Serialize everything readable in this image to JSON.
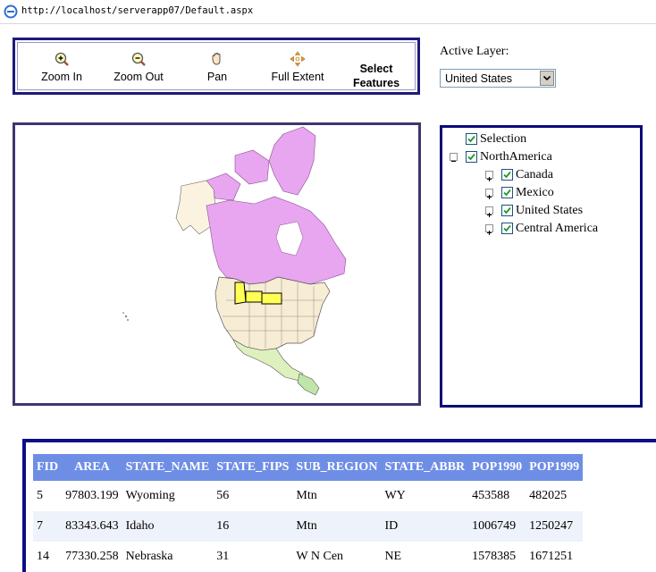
{
  "browser": {
    "url": "http://localhost/serverapp07/Default.aspx"
  },
  "toolbar": {
    "zoom_in": "Zoom In",
    "zoom_out": "Zoom Out",
    "pan": "Pan",
    "full_extent": "Full Extent",
    "select_line1": "Select",
    "select_line2": "Features"
  },
  "active_layer": {
    "label": "Active Layer:",
    "value": "United States"
  },
  "toc": {
    "items": [
      {
        "label": "Selection",
        "checked": true
      },
      {
        "label": "NorthAmerica",
        "checked": true,
        "expanded": true
      },
      {
        "label": "Canada",
        "checked": true
      },
      {
        "label": "Mexico",
        "checked": true
      },
      {
        "label": "United States",
        "checked": true
      },
      {
        "label": "Central America",
        "checked": true
      }
    ]
  },
  "colors": {
    "canada": "#e8a6f0",
    "usa": "#f7ecd4",
    "selected": "#ffff55",
    "mexico": "#dff0bf",
    "alaska": "#fbf3e0",
    "header_bg": "#6e8ee6",
    "border": "#0d0d8a"
  },
  "grid": {
    "columns": [
      "FID",
      "AREA",
      "STATE_NAME",
      "STATE_FIPS",
      "SUB_REGION",
      "STATE_ABBR",
      "POP1990",
      "POP1999"
    ],
    "rows": [
      [
        "5",
        "97803.199",
        "Wyoming",
        "56",
        "Mtn",
        "WY",
        "453588",
        "482025"
      ],
      [
        "7",
        "83343.643",
        "Idaho",
        "16",
        "Mtn",
        "ID",
        "1006749",
        "1250247"
      ],
      [
        "14",
        "77330.258",
        "Nebraska",
        "31",
        "W N Cen",
        "NE",
        "1578385",
        "1671251"
      ]
    ]
  }
}
